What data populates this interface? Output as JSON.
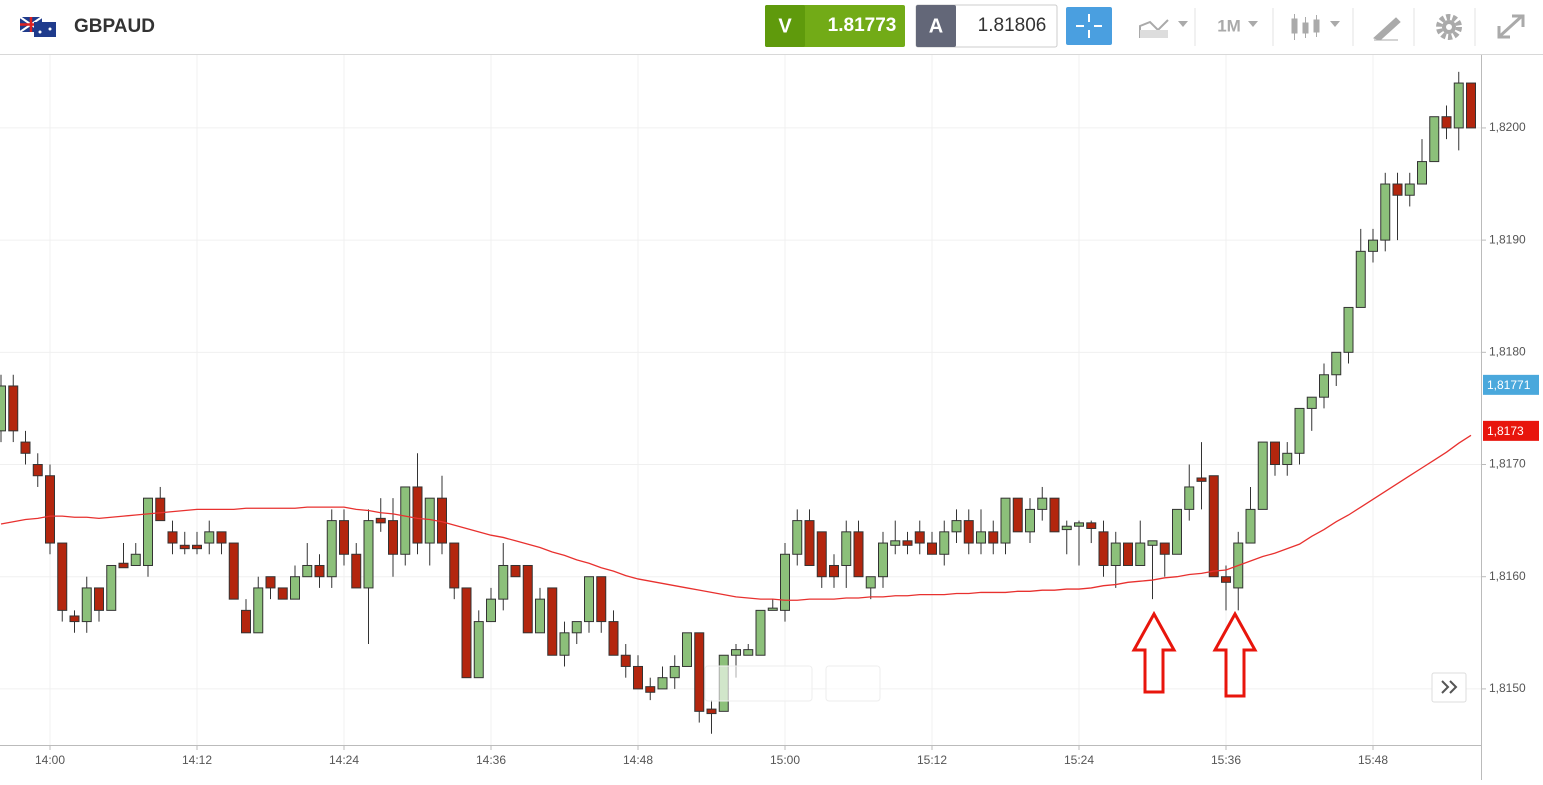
{
  "toolbar": {
    "symbol": "GBPAUD",
    "sell_label": "V",
    "sell_price": "1.81773",
    "buy_label": "A",
    "buy_price": "1.81806",
    "timeframe": "1M"
  },
  "chart_data": {
    "type": "candlestick",
    "categories": [
      null,
      null,
      null,
      null,
      "14:00",
      null,
      null,
      null,
      null,
      null,
      null,
      null,
      null,
      null,
      null,
      null,
      "14:12",
      null,
      null,
      null,
      null,
      null,
      null,
      null,
      null,
      null,
      null,
      null,
      "14:24",
      null,
      null,
      null,
      null,
      null,
      null,
      null,
      null,
      null,
      null,
      null,
      "14:36",
      null,
      null,
      null,
      null,
      null,
      null,
      null,
      null,
      null,
      null,
      null,
      "14:48",
      null,
      null,
      null,
      null,
      null,
      null,
      null,
      null,
      null,
      null,
      null,
      "15:00",
      null,
      null,
      null,
      null,
      null,
      null,
      null,
      null,
      null,
      null,
      null,
      "15:12",
      null,
      null,
      null,
      null,
      null,
      null,
      null,
      null,
      null,
      null,
      null,
      "15:24",
      null,
      null,
      null,
      null,
      null,
      null,
      null,
      null,
      null,
      null,
      null,
      "15:36",
      null,
      null,
      null,
      null,
      null,
      null,
      null,
      null,
      null,
      null,
      null,
      "15:48",
      null,
      null,
      null,
      null,
      null,
      null,
      null,
      null
    ],
    "ohlc": [
      [
        1.8173,
        1.8178,
        1.8172,
        1.8177
      ],
      [
        1.8177,
        1.8178,
        1.8172,
        1.8173
      ],
      [
        1.8172,
        1.8173,
        1.817,
        1.8171
      ],
      [
        1.817,
        1.8171,
        1.8168,
        1.8169
      ],
      [
        1.8169,
        1.817,
        1.8162,
        1.8163
      ],
      [
        1.8163,
        1.8163,
        1.8156,
        1.8157
      ],
      [
        1.81565,
        1.8157,
        1.8155,
        1.8156
      ],
      [
        1.8156,
        1.816,
        1.8155,
        1.8159
      ],
      [
        1.8159,
        1.8159,
        1.8156,
        1.8157
      ],
      [
        1.8157,
        1.8161,
        1.8157,
        1.8161
      ],
      [
        1.81612,
        1.8163,
        1.8161,
        1.81608
      ],
      [
        1.8161,
        1.8163,
        1.8161,
        1.8162
      ],
      [
        1.8161,
        1.8167,
        1.816,
        1.8167
      ],
      [
        1.8167,
        1.8168,
        1.8165,
        1.8165
      ],
      [
        1.8164,
        1.8165,
        1.8162,
        1.8163
      ],
      [
        1.81628,
        1.8164,
        1.8162,
        1.81625
      ],
      [
        1.81628,
        1.8164,
        1.8162,
        1.81625
      ],
      [
        1.8163,
        1.8165,
        1.8162,
        1.8164
      ],
      [
        1.8164,
        1.8164,
        1.8162,
        1.8163
      ],
      [
        1.8163,
        1.8163,
        1.8158,
        1.8158
      ],
      [
        1.8157,
        1.8158,
        1.8155,
        1.8155
      ],
      [
        1.8155,
        1.816,
        1.8155,
        1.8159
      ],
      [
        1.816,
        1.816,
        1.8158,
        1.8159
      ],
      [
        1.8159,
        1.8159,
        1.8158,
        1.8158
      ],
      [
        1.8158,
        1.8161,
        1.8158,
        1.816
      ],
      [
        1.816,
        1.8163,
        1.816,
        1.8161
      ],
      [
        1.8161,
        1.8162,
        1.8159,
        1.816
      ],
      [
        1.816,
        1.8166,
        1.8159,
        1.8165
      ],
      [
        1.8165,
        1.8166,
        1.8161,
        1.8162
      ],
      [
        1.8162,
        1.8163,
        1.8159,
        1.8159
      ],
      [
        1.8159,
        1.8166,
        1.8154,
        1.8165
      ],
      [
        1.81652,
        1.8167,
        1.8164,
        1.81648
      ],
      [
        1.8165,
        1.8167,
        1.816,
        1.8162
      ],
      [
        1.8162,
        1.8168,
        1.8161,
        1.8168
      ],
      [
        1.8168,
        1.8171,
        1.8162,
        1.8163
      ],
      [
        1.8163,
        1.8167,
        1.8161,
        1.8167
      ],
      [
        1.8167,
        1.8169,
        1.8162,
        1.8163
      ],
      [
        1.8163,
        1.8163,
        1.8158,
        1.8159
      ],
      [
        1.8159,
        1.8159,
        1.8151,
        1.8151
      ],
      [
        1.8151,
        1.8157,
        1.8151,
        1.8156
      ],
      [
        1.8156,
        1.8159,
        1.8156,
        1.8158
      ],
      [
        1.8158,
        1.8163,
        1.8157,
        1.8161
      ],
      [
        1.8161,
        1.8161,
        1.816,
        1.816
      ],
      [
        1.8161,
        1.8161,
        1.8155,
        1.8155
      ],
      [
        1.8155,
        1.8159,
        1.8155,
        1.8158
      ],
      [
        1.8159,
        1.8159,
        1.8153,
        1.8153
      ],
      [
        1.8153,
        1.8156,
        1.8152,
        1.8155
      ],
      [
        1.8155,
        1.8156,
        1.8154,
        1.8156
      ],
      [
        1.8156,
        1.816,
        1.8155,
        1.816
      ],
      [
        1.816,
        1.816,
        1.8155,
        1.8156
      ],
      [
        1.8156,
        1.8157,
        1.8153,
        1.8153
      ],
      [
        1.8153,
        1.8154,
        1.8151,
        1.8152
      ],
      [
        1.8152,
        1.8153,
        1.815,
        1.815
      ],
      [
        1.81502,
        1.8151,
        1.8149,
        1.81497
      ],
      [
        1.815,
        1.8152,
        1.815,
        1.8151
      ],
      [
        1.8151,
        1.8153,
        1.815,
        1.8152
      ],
      [
        1.8152,
        1.8155,
        1.8152,
        1.8155
      ],
      [
        1.8155,
        1.8155,
        1.8147,
        1.8148
      ],
      [
        1.81482,
        1.8149,
        1.8146,
        1.81478
      ],
      [
        1.8148,
        1.8153,
        1.8148,
        1.8153
      ],
      [
        1.8153,
        1.8154,
        1.8151,
        1.81535
      ],
      [
        1.8153,
        1.8154,
        1.8153,
        1.81535
      ],
      [
        1.8153,
        1.8157,
        1.8153,
        1.8157
      ],
      [
        1.8157,
        1.8158,
        1.8157,
        1.81572
      ],
      [
        1.8157,
        1.8163,
        1.8156,
        1.8162
      ],
      [
        1.8162,
        1.8166,
        1.8161,
        1.8165
      ],
      [
        1.8165,
        1.8166,
        1.8161,
        1.8161
      ],
      [
        1.8164,
        1.8164,
        1.8159,
        1.816
      ],
      [
        1.8161,
        1.8162,
        1.8159,
        1.816
      ],
      [
        1.8161,
        1.8165,
        1.8159,
        1.8164
      ],
      [
        1.8164,
        1.8165,
        1.816,
        1.816
      ],
      [
        1.8159,
        1.816,
        1.8158,
        1.816
      ],
      [
        1.816,
        1.8164,
        1.8159,
        1.8163
      ],
      [
        1.81628,
        1.8165,
        1.8162,
        1.81632
      ],
      [
        1.81632,
        1.8164,
        1.8162,
        1.81628
      ],
      [
        1.8164,
        1.8165,
        1.8162,
        1.8163
      ],
      [
        1.8163,
        1.8164,
        1.8162,
        1.8162
      ],
      [
        1.8162,
        1.8165,
        1.8161,
        1.8164
      ],
      [
        1.8164,
        1.8166,
        1.8163,
        1.8165
      ],
      [
        1.8165,
        1.8166,
        1.8162,
        1.8163
      ],
      [
        1.8163,
        1.8166,
        1.8162,
        1.8164
      ],
      [
        1.8164,
        1.8165,
        1.8162,
        1.8163
      ],
      [
        1.8163,
        1.8167,
        1.8162,
        1.8167
      ],
      [
        1.8167,
        1.8167,
        1.8164,
        1.8164
      ],
      [
        1.8164,
        1.8167,
        1.8163,
        1.8166
      ],
      [
        1.8166,
        1.8168,
        1.8165,
        1.8167
      ],
      [
        1.8167,
        1.8167,
        1.8164,
        1.8164
      ],
      [
        1.81642,
        1.8165,
        1.8162,
        1.81645
      ],
      [
        1.81645,
        1.8165,
        1.8161,
        1.81648
      ],
      [
        1.81648,
        1.8165,
        1.8163,
        1.81643
      ],
      [
        1.8164,
        1.8165,
        1.816,
        1.8161
      ],
      [
        1.8161,
        1.8164,
        1.8159,
        1.8163
      ],
      [
        1.8163,
        1.8163,
        1.8161,
        1.8161
      ],
      [
        1.8161,
        1.8165,
        1.8161,
        1.8163
      ],
      [
        1.81628,
        1.8163,
        1.8158,
        1.81632
      ],
      [
        1.8163,
        1.8163,
        1.816,
        1.8162
      ],
      [
        1.8162,
        1.8166,
        1.8162,
        1.8166
      ],
      [
        1.8166,
        1.817,
        1.8165,
        1.8168
      ],
      [
        1.81688,
        1.8172,
        1.8166,
        1.81685
      ],
      [
        1.8169,
        1.8169,
        1.816,
        1.816
      ],
      [
        1.816,
        1.8161,
        1.8157,
        1.81595
      ],
      [
        1.8159,
        1.8164,
        1.8157,
        1.8163
      ],
      [
        1.8163,
        1.8168,
        1.8163,
        1.8166
      ],
      [
        1.8166,
        1.8172,
        1.8166,
        1.8172
      ],
      [
        1.8172,
        1.8172,
        1.8169,
        1.817
      ],
      [
        1.817,
        1.8172,
        1.8169,
        1.8171
      ],
      [
        1.8171,
        1.8175,
        1.817,
        1.8175
      ],
      [
        1.8175,
        1.8176,
        1.8173,
        1.8176
      ],
      [
        1.8176,
        1.8179,
        1.8175,
        1.8178
      ],
      [
        1.8178,
        1.818,
        1.8177,
        1.818
      ],
      [
        1.818,
        1.8184,
        1.8179,
        1.8184
      ],
      [
        1.8184,
        1.8191,
        1.8184,
        1.8189
      ],
      [
        1.8189,
        1.8191,
        1.8188,
        1.819
      ],
      [
        1.819,
        1.8196,
        1.8189,
        1.8195
      ],
      [
        1.8195,
        1.8196,
        1.819,
        1.8194
      ],
      [
        1.8194,
        1.8196,
        1.8193,
        1.8195
      ],
      [
        1.8195,
        1.8199,
        1.8195,
        1.8197
      ],
      [
        1.8197,
        1.8201,
        1.8197,
        1.8201
      ],
      [
        1.8201,
        1.8202,
        1.8199,
        1.82
      ],
      [
        1.82,
        1.8205,
        1.8198,
        1.8204
      ],
      [
        1.8204,
        1.8204,
        1.82,
        1.82
      ]
    ],
    "up_color": "#8cc07a",
    "down_color": "#b3260e",
    "moving_average": {
      "color": "#e8312f",
      "values": [
        1.81647,
        1.81649,
        1.81651,
        1.81652,
        1.81654,
        1.81654,
        1.81653,
        1.81653,
        1.81652,
        1.81653,
        1.81654,
        1.81655,
        1.81656,
        1.81657,
        1.81658,
        1.81659,
        1.8166,
        1.8166,
        1.8166,
        1.8166,
        1.81661,
        1.81661,
        1.81661,
        1.81661,
        1.81661,
        1.81662,
        1.81662,
        1.81662,
        1.81662,
        1.8166,
        1.81659,
        1.81657,
        1.81656,
        1.81654,
        1.81652,
        1.81651,
        1.81649,
        1.81646,
        1.81643,
        1.8164,
        1.81637,
        1.81635,
        1.81632,
        1.81629,
        1.81626,
        1.81622,
        1.81619,
        1.81615,
        1.81612,
        1.81608,
        1.81605,
        1.81601,
        1.81598,
        1.81596,
        1.81594,
        1.81592,
        1.8159,
        1.81588,
        1.81586,
        1.81584,
        1.81582,
        1.81581,
        1.8158,
        1.8158,
        1.81579,
        1.81579,
        1.8158,
        1.8158,
        1.8158,
        1.81581,
        1.81581,
        1.81582,
        1.81582,
        1.81583,
        1.81583,
        1.81584,
        1.81584,
        1.81584,
        1.81585,
        1.81585,
        1.81586,
        1.81586,
        1.81586,
        1.81587,
        1.81587,
        1.81588,
        1.81588,
        1.81589,
        1.81589,
        1.8159,
        1.81592,
        1.81593,
        1.81595,
        1.81596,
        1.81597,
        1.81599,
        1.816,
        1.81602,
        1.81603,
        1.81605,
        1.81606,
        1.8161,
        1.81614,
        1.81618,
        1.81621,
        1.81625,
        1.81629,
        1.81636,
        1.81642,
        1.81649,
        1.81655,
        1.81662,
        1.81669,
        1.81676,
        1.81683,
        1.8169,
        1.81697,
        1.81704,
        1.81711,
        1.81719,
        1.81726
      ]
    },
    "ylim": [
      1.8145,
      1.82065
    ],
    "yticks": [
      {
        "value": 1.815,
        "label": "1,8150"
      },
      {
        "value": 1.816,
        "label": "1,8160"
      },
      {
        "value": 1.817,
        "label": "1,8170"
      },
      {
        "value": 1.818,
        "label": "1,8180"
      },
      {
        "value": 1.819,
        "label": "1,8190"
      },
      {
        "value": 1.82,
        "label": "1,8200"
      }
    ],
    "price_tags": [
      {
        "value": 1.81771,
        "label": "1,81771",
        "color": "#4aa8dc"
      },
      {
        "value": 1.8173,
        "label": "1,8173",
        "color": "#e8150c"
      }
    ],
    "grid": true
  }
}
